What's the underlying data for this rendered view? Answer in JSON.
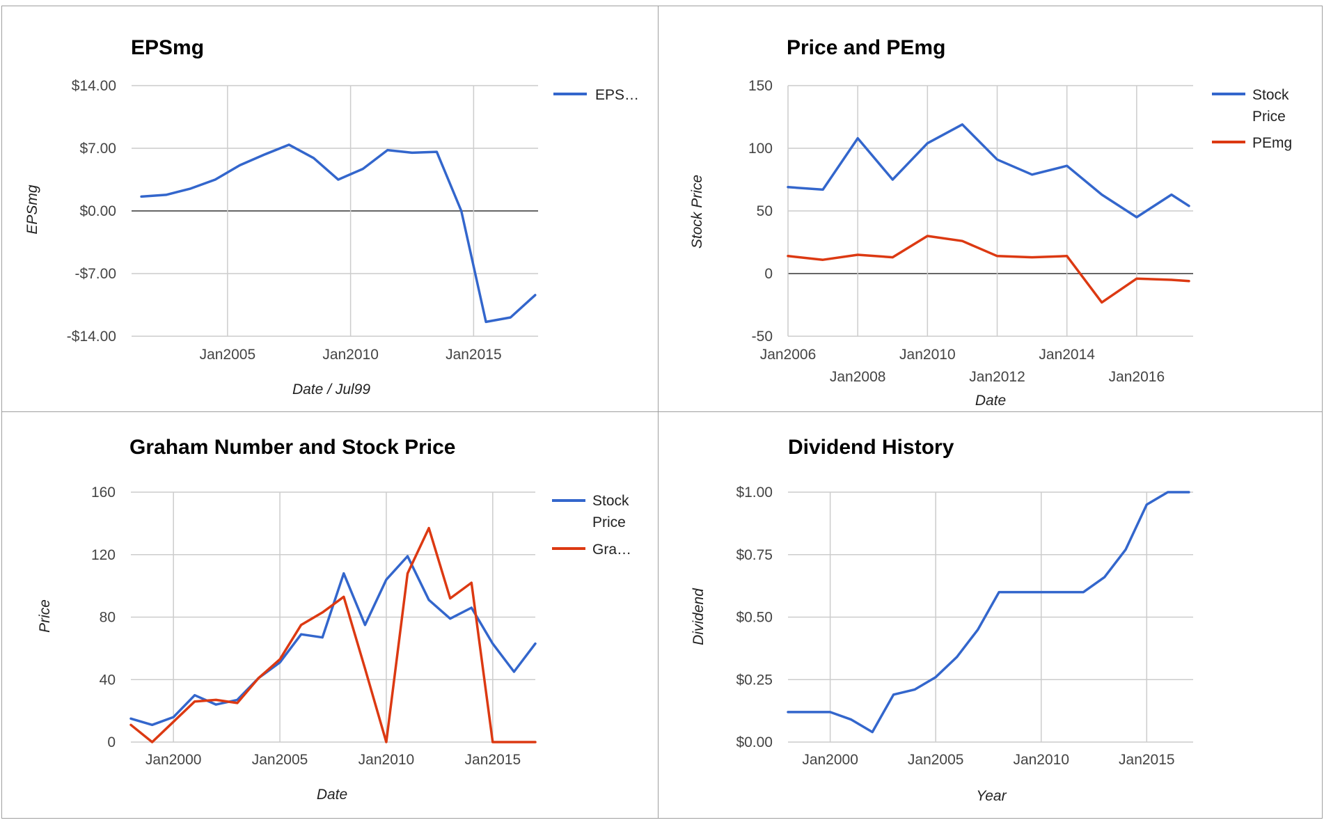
{
  "colors": {
    "blue": "#3366cc",
    "red": "#dc3912",
    "grid": "#cccccc"
  },
  "chart_data": [
    {
      "type": "line",
      "title": "EPSmg",
      "xlabel": "Date / Jul99",
      "ylabel": "EPSmg",
      "ylim": [
        -14,
        14
      ],
      "yticks": [
        "$14.00",
        "$7.00",
        "$0.00",
        "-$7.00",
        "-$14.00"
      ],
      "xticks": [
        "Jan2005",
        "Jan2010",
        "Jan2015"
      ],
      "grid": true,
      "legend_position": "right",
      "series": [
        {
          "name": "EPS…",
          "color": "#3366cc",
          "x": [
            "Jul2001",
            "Jul2002",
            "Jul2003",
            "Jul2004",
            "Jul2005",
            "Jul2006",
            "Jul2007",
            "Jul2008",
            "Jul2009",
            "Jul2010",
            "Jul2011",
            "Jul2012",
            "Jul2013",
            "Jul2014",
            "Jul2015",
            "Jul2016",
            "Jul2017",
            "Jul2018"
          ],
          "values": [
            1.6,
            1.8,
            2.5,
            3.5,
            5.1,
            6.3,
            7.4,
            5.9,
            3.5,
            4.7,
            6.8,
            6.5,
            6.6,
            0.0,
            -12.4,
            -11.9,
            -9.4,
            null
          ]
        }
      ]
    },
    {
      "type": "line",
      "title": "Price and PEmg",
      "xlabel": "Date",
      "ylabel": "Stock Price",
      "ylim": [
        -50,
        150
      ],
      "yticks": [
        "150",
        "100",
        "50",
        "0",
        "-50"
      ],
      "xticks": [
        "Jan2006",
        "Jan2008",
        "Jan2010",
        "Jan2012",
        "Jan2014",
        "Jan2016"
      ],
      "grid": true,
      "legend_position": "right",
      "series": [
        {
          "name": "Stock Price",
          "color": "#3366cc",
          "x": [
            "Jan2006",
            "Jan2007",
            "Jan2008",
            "Jan2009",
            "Jan2010",
            "Jan2011",
            "Jan2012",
            "Jan2013",
            "Jan2014",
            "Jan2015",
            "Jan2016",
            "Jan2017",
            "Jul2017"
          ],
          "values": [
            69,
            67,
            108,
            75,
            104,
            119,
            91,
            79,
            86,
            63,
            45,
            63,
            54
          ]
        },
        {
          "name": "PEmg",
          "color": "#dc3912",
          "x": [
            "Jan2006",
            "Jan2007",
            "Jan2008",
            "Jan2009",
            "Jan2010",
            "Jan2011",
            "Jan2012",
            "Jan2013",
            "Jan2014",
            "Jan2015",
            "Jan2016",
            "Jan2017",
            "Jul2017"
          ],
          "values": [
            14,
            11,
            15,
            13,
            30,
            26,
            14,
            13,
            14,
            -23,
            -4,
            -5,
            -6
          ]
        }
      ]
    },
    {
      "type": "line",
      "title": "Graham Number and Stock Price",
      "xlabel": "Date",
      "ylabel": "Price",
      "ylim": [
        0,
        160
      ],
      "yticks": [
        "160",
        "120",
        "80",
        "40",
        "0"
      ],
      "xticks": [
        "Jan2000",
        "Jan2005",
        "Jan2010",
        "Jan2015"
      ],
      "grid": true,
      "legend_position": "right",
      "series": [
        {
          "name": "Stock Price",
          "color": "#3366cc",
          "x": [
            "Jan1998",
            "Jan1999",
            "Jan2000",
            "Jan2001",
            "Jan2002",
            "Jan2003",
            "Jan2004",
            "Jan2005",
            "Jan2006",
            "Jan2007",
            "Jan2008",
            "Jan2009",
            "Jan2010",
            "Jan2011",
            "Jan2012",
            "Jan2013",
            "Jan2014",
            "Jan2015",
            "Jan2016",
            "Jan2017"
          ],
          "values": [
            15,
            11,
            16,
            30,
            24,
            27,
            41,
            51,
            69,
            67,
            108,
            75,
            104,
            119,
            91,
            79,
            86,
            63,
            45,
            63
          ]
        },
        {
          "name": "Gra…",
          "color": "#dc3912",
          "x": [
            "Jan1998",
            "Jan1999",
            "Jan2000",
            "Jan2001",
            "Jan2002",
            "Jan2003",
            "Jan2004",
            "Jan2005",
            "Jan2006",
            "Jan2007",
            "Jan2008",
            "Jan2009",
            "Jan2010",
            "Jan2011",
            "Jan2012",
            "Jan2013",
            "Jan2014",
            "Jan2015",
            "Jan2016",
            "Jan2017"
          ],
          "values": [
            11,
            0,
            13,
            26,
            27,
            25,
            41,
            53,
            75,
            83,
            93,
            47,
            0,
            108,
            137,
            92,
            102,
            0,
            0,
            0
          ]
        }
      ]
    },
    {
      "type": "line",
      "title": "Dividend History",
      "xlabel": "Year",
      "ylabel": "Dividend",
      "ylim": [
        0,
        1
      ],
      "yticks": [
        "$1.00",
        "$0.75",
        "$0.50",
        "$0.25",
        "$0.00"
      ],
      "xticks": [
        "Jan2000",
        "Jan2005",
        "Jan2010",
        "Jan2015"
      ],
      "grid": true,
      "legend_position": "none",
      "series": [
        {
          "color": "#3366cc",
          "x": [
            "1998",
            "1999",
            "2000",
            "2001",
            "2002",
            "2003",
            "2004",
            "2005",
            "2006",
            "2007",
            "2008",
            "2009",
            "2010",
            "2011",
            "2012",
            "2013",
            "2014",
            "2015",
            "2016",
            "2017"
          ],
          "values": [
            0.12,
            0.12,
            0.12,
            0.09,
            0.04,
            0.19,
            0.21,
            0.26,
            0.34,
            0.45,
            0.6,
            0.6,
            0.6,
            0.6,
            0.6,
            0.66,
            0.77,
            0.95,
            1.0,
            1.0
          ]
        }
      ]
    }
  ]
}
